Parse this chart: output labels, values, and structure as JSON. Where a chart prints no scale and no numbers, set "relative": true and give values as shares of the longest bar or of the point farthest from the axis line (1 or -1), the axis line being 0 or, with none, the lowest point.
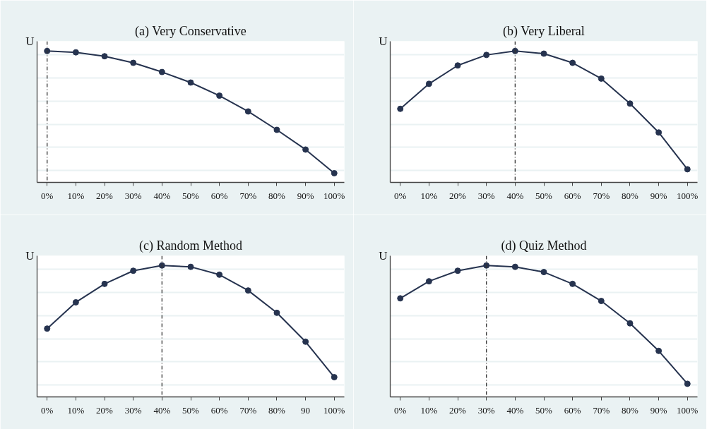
{
  "chart_data": [
    {
      "type": "line",
      "title": "(a) Very Conservative",
      "ylabel": "U",
      "relative": true,
      "marker": "circle",
      "grid": "y",
      "x": [
        0,
        10,
        20,
        30,
        40,
        50,
        60,
        70,
        80,
        90,
        100
      ],
      "xlim": [
        -3.5,
        103.5
      ],
      "xticks": [
        {
          "value": 0,
          "label": "0%"
        },
        {
          "value": 10,
          "label": "10%"
        },
        {
          "value": 20,
          "label": "20%"
        },
        {
          "value": 30,
          "label": "30%"
        },
        {
          "value": 40,
          "label": "40%"
        },
        {
          "value": 50,
          "label": "50%"
        },
        {
          "value": 60,
          "label": "60%"
        },
        {
          "value": 70,
          "label": "70%"
        },
        {
          "value": 80,
          "label": "80%"
        },
        {
          "value": 90,
          "label": "90%"
        },
        {
          "value": 100,
          "label": "100%"
        }
      ],
      "series": [
        {
          "color": "#26334f",
          "values": [
            1,
            0.99,
            0.96,
            0.91,
            0.84,
            0.76,
            0.66,
            0.54,
            0.4,
            0.25,
            0.07
          ]
        }
      ],
      "ref_lines": [
        {
          "axis": "x",
          "value": 0,
          "color": "#333333",
          "line_style": "dashed"
        }
      ]
    },
    {
      "type": "line",
      "title": "(b) Very Liberal",
      "ylabel": "U",
      "relative": true,
      "marker": "circle",
      "grid": "y",
      "x": [
        0,
        10,
        20,
        30,
        40,
        50,
        60,
        70,
        80,
        90,
        100
      ],
      "xlim": [
        -3.5,
        103.5
      ],
      "xticks": [
        {
          "value": 0,
          "label": "0%"
        },
        {
          "value": 10,
          "label": "10%"
        },
        {
          "value": 20,
          "label": "20%"
        },
        {
          "value": 30,
          "label": "30%"
        },
        {
          "value": 40,
          "label": "40%"
        },
        {
          "value": 50,
          "label": "50%"
        },
        {
          "value": 60,
          "label": "60%"
        },
        {
          "value": 70,
          "label": "70%"
        },
        {
          "value": 80,
          "label": "80%"
        },
        {
          "value": 90,
          "label": "90%"
        },
        {
          "value": 100,
          "label": "100%"
        }
      ],
      "series": [
        {
          "color": "#26334f",
          "values": [
            0.56,
            0.75,
            0.89,
            0.97,
            1,
            0.98,
            0.91,
            0.79,
            0.6,
            0.38,
            0.1
          ]
        }
      ],
      "ref_lines": [
        {
          "axis": "x",
          "value": 40,
          "color": "#333333",
          "line_style": "dashed"
        }
      ]
    },
    {
      "type": "line",
      "title": "(c) Random Method",
      "ylabel": "U",
      "relative": true,
      "marker": "circle",
      "grid": "y",
      "x": [
        0,
        10,
        20,
        30,
        40,
        50,
        60,
        70,
        80,
        90,
        100
      ],
      "xlim": [
        -3.5,
        103.5
      ],
      "xticks": [
        {
          "value": 0,
          "label": "0%"
        },
        {
          "value": 10,
          "label": "10%"
        },
        {
          "value": 20,
          "label": "20%"
        },
        {
          "value": 30,
          "label": "30%"
        },
        {
          "value": 40,
          "label": "40%"
        },
        {
          "value": 50,
          "label": "50%"
        },
        {
          "value": 60,
          "label": "60%"
        },
        {
          "value": 70,
          "label": "70%"
        },
        {
          "value": 80,
          "label": "80%"
        },
        90,
        {
          "value": 100,
          "label": "100%"
        }
      ],
      "series": [
        {
          "color": "#26334f",
          "values": [
            0.52,
            0.72,
            0.86,
            0.96,
            1,
            0.99,
            0.93,
            0.81,
            0.64,
            0.42,
            0.15
          ]
        }
      ],
      "ref_lines": [
        {
          "axis": "x",
          "value": 40,
          "color": "#333333",
          "line_style": "dashed"
        }
      ]
    },
    {
      "type": "line",
      "title": "(d) Quiz Method",
      "ylabel": "U",
      "relative": true,
      "marker": "circle",
      "grid": "y",
      "x": [
        0,
        10,
        20,
        30,
        40,
        50,
        60,
        70,
        80,
        90,
        100
      ],
      "xlim": [
        -3.5,
        103.5
      ],
      "xticks": [
        {
          "value": 0,
          "label": "0%"
        },
        {
          "value": 10,
          "label": "10%"
        },
        {
          "value": 20,
          "label": "20%"
        },
        {
          "value": 30,
          "label": "30%"
        },
        {
          "value": 40,
          "label": "40%"
        },
        {
          "value": 50,
          "label": "50%"
        },
        {
          "value": 60,
          "label": "60%"
        },
        {
          "value": 70,
          "label": "70%"
        },
        {
          "value": 80,
          "label": "80%"
        },
        {
          "value": 90,
          "label": "90%"
        },
        {
          "value": 100,
          "label": "100%"
        }
      ],
      "series": [
        {
          "color": "#26334f",
          "values": [
            0.75,
            0.88,
            0.96,
            1,
            0.99,
            0.95,
            0.86,
            0.73,
            0.56,
            0.35,
            0.1
          ]
        }
      ],
      "ref_lines": [
        {
          "axis": "x",
          "value": 30,
          "color": "#333333",
          "line_style": "dashed"
        }
      ]
    }
  ]
}
